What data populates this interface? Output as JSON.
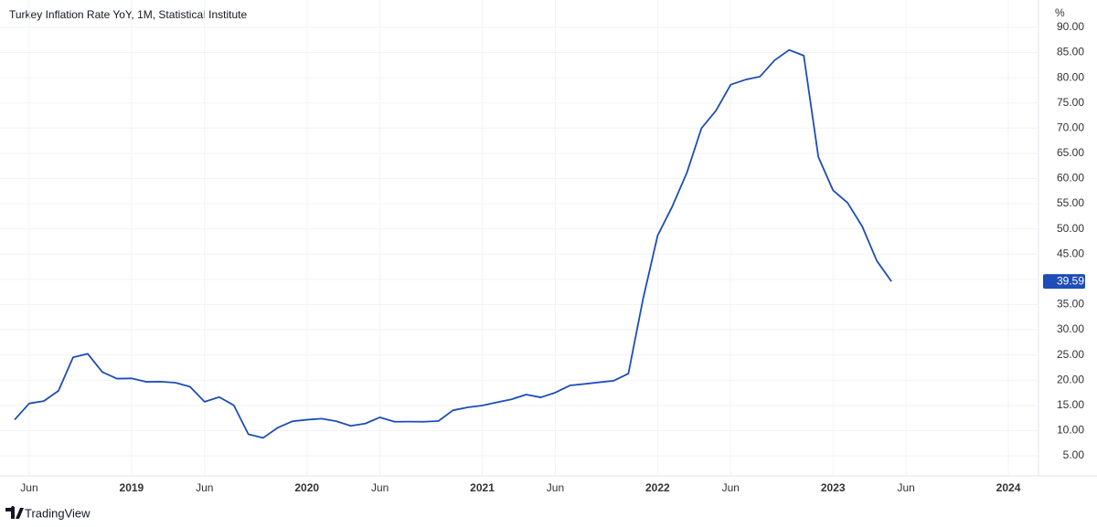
{
  "brand": "TradingView",
  "chart_data": {
    "type": "line",
    "title": "Turkey Inflation Rate YoY, 1M, Statistical Institute",
    "y_unit": "%",
    "x": [
      "2018-05",
      "2018-06",
      "2018-07",
      "2018-08",
      "2018-09",
      "2018-10",
      "2018-11",
      "2018-12",
      "2019-01",
      "2019-02",
      "2019-03",
      "2019-04",
      "2019-05",
      "2019-06",
      "2019-07",
      "2019-08",
      "2019-09",
      "2019-10",
      "2019-11",
      "2019-12",
      "2020-01",
      "2020-02",
      "2020-03",
      "2020-04",
      "2020-05",
      "2020-06",
      "2020-07",
      "2020-08",
      "2020-09",
      "2020-10",
      "2020-11",
      "2020-12",
      "2021-01",
      "2021-02",
      "2021-03",
      "2021-04",
      "2021-05",
      "2021-06",
      "2021-07",
      "2021-08",
      "2021-09",
      "2021-10",
      "2021-11",
      "2021-12",
      "2022-01",
      "2022-02",
      "2022-03",
      "2022-04",
      "2022-05",
      "2022-06",
      "2022-07",
      "2022-08",
      "2022-09",
      "2022-10",
      "2022-11",
      "2022-12",
      "2023-01",
      "2023-02",
      "2023-03",
      "2023-04",
      "2023-05"
    ],
    "series": [
      {
        "name": "Turkey Inflation Rate YoY",
        "color": "#1e4db7",
        "values": [
          12.15,
          15.39,
          15.85,
          17.9,
          24.52,
          25.24,
          21.62,
          20.3,
          20.35,
          19.67,
          19.71,
          19.5,
          18.71,
          15.72,
          16.65,
          15.01,
          9.26,
          8.55,
          10.56,
          11.84,
          12.15,
          12.37,
          11.86,
          10.94,
          11.39,
          12.62,
          11.76,
          11.77,
          11.75,
          11.89,
          14.03,
          14.6,
          14.97,
          15.61,
          16.19,
          17.14,
          16.59,
          17.53,
          18.95,
          19.25,
          19.58,
          19.89,
          21.31,
          36.08,
          48.69,
          54.44,
          61.14,
          69.97,
          73.5,
          78.62,
          79.6,
          80.21,
          83.45,
          85.51,
          84.39,
          64.27,
          57.68,
          55.18,
          50.51,
          43.68,
          39.59
        ],
        "last_value_label": "39.59"
      }
    ],
    "xlim": [
      "2018-04",
      "2024-03"
    ],
    "xticks": [
      {
        "value": "2018-06",
        "label": "Jun"
      },
      {
        "value": "2019-01",
        "label": "2019"
      },
      {
        "value": "2019-06",
        "label": "Jun"
      },
      {
        "value": "2020-01",
        "label": "2020"
      },
      {
        "value": "2020-06",
        "label": "Jun"
      },
      {
        "value": "2021-01",
        "label": "2021"
      },
      {
        "value": "2021-06",
        "label": "Jun"
      },
      {
        "value": "2022-01",
        "label": "2022"
      },
      {
        "value": "2022-06",
        "label": "Jun"
      },
      {
        "value": "2023-01",
        "label": "2023"
      },
      {
        "value": "2023-06",
        "label": "Jun"
      },
      {
        "value": "2024-01",
        "label": "2024"
      }
    ],
    "ylim": [
      1.2,
      92.7
    ],
    "yticks": [
      {
        "value": 5,
        "label": "5.00"
      },
      {
        "value": 10,
        "label": "10.00"
      },
      {
        "value": 15,
        "label": "15.00"
      },
      {
        "value": 20,
        "label": "20.00"
      },
      {
        "value": 25,
        "label": "25.00"
      },
      {
        "value": 30,
        "label": "30.00"
      },
      {
        "value": 35,
        "label": "35.00"
      },
      {
        "value": 40,
        "label": "40.00"
      },
      {
        "value": 45,
        "label": "45.00"
      },
      {
        "value": 50,
        "label": "50.00"
      },
      {
        "value": 55,
        "label": "55.00"
      },
      {
        "value": 60,
        "label": "60.00"
      },
      {
        "value": 65,
        "label": "65.00"
      },
      {
        "value": 70,
        "label": "70.00"
      },
      {
        "value": 75,
        "label": "75.00"
      },
      {
        "value": 80,
        "label": "80.00"
      },
      {
        "value": 85,
        "label": "85.00"
      },
      {
        "value": 90,
        "label": "90.00"
      }
    ],
    "grid": true
  }
}
